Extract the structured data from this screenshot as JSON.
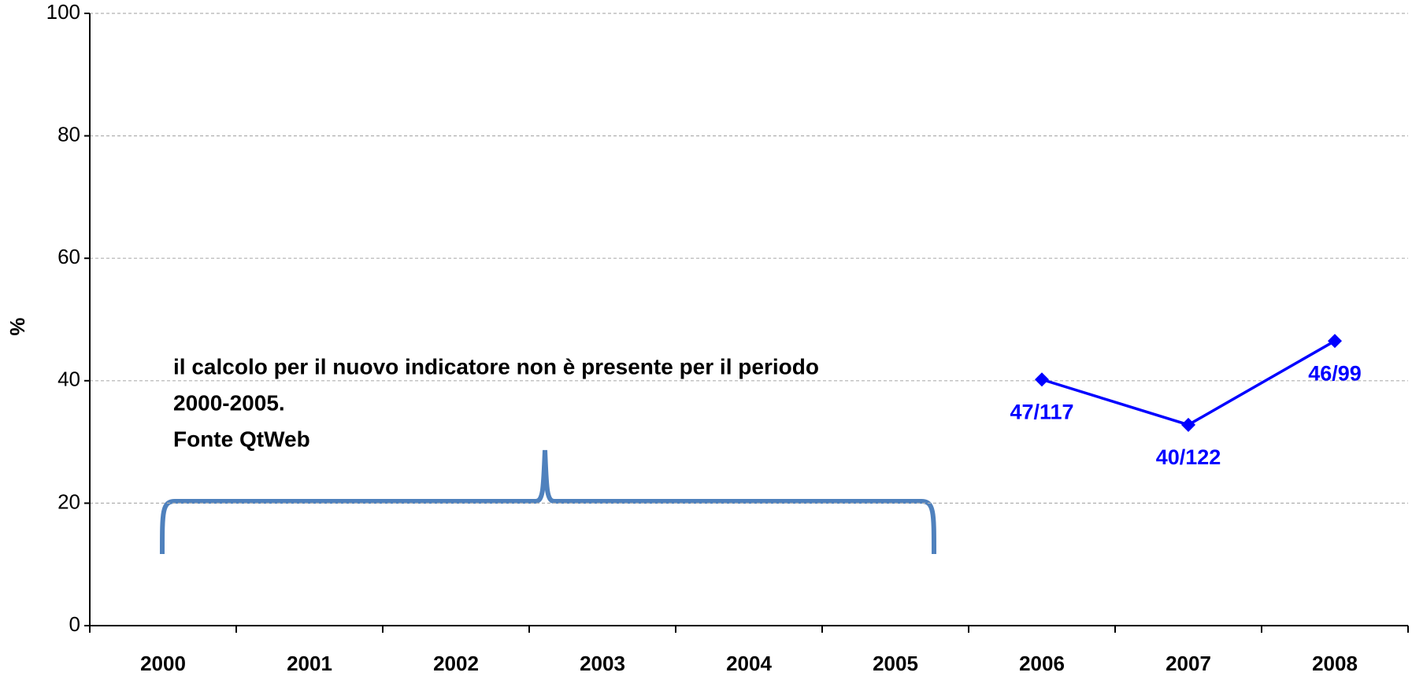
{
  "chart_data": {
    "type": "line",
    "y_label": "%",
    "annotation": [
      "il calcolo per il nuovo indicatore non è presente per il periodo",
      "2000-2005.",
      "Fonte QtWeb"
    ],
    "categories": [
      "2000",
      "2001",
      "2002",
      "2003",
      "2004",
      "2005",
      "2006",
      "2007",
      "2008"
    ],
    "series": [
      {
        "color": "#0000ff",
        "values": [
          null,
          null,
          null,
          null,
          null,
          null,
          40.2,
          32.8,
          46.5
        ],
        "value_labels": [
          null,
          null,
          null,
          null,
          null,
          null,
          "47/117",
          "40/122",
          "46/99"
        ]
      }
    ],
    "ylim": [
      0,
      100
    ],
    "yticks": [
      0,
      20,
      40,
      60,
      80,
      100
    ],
    "grid": true
  }
}
